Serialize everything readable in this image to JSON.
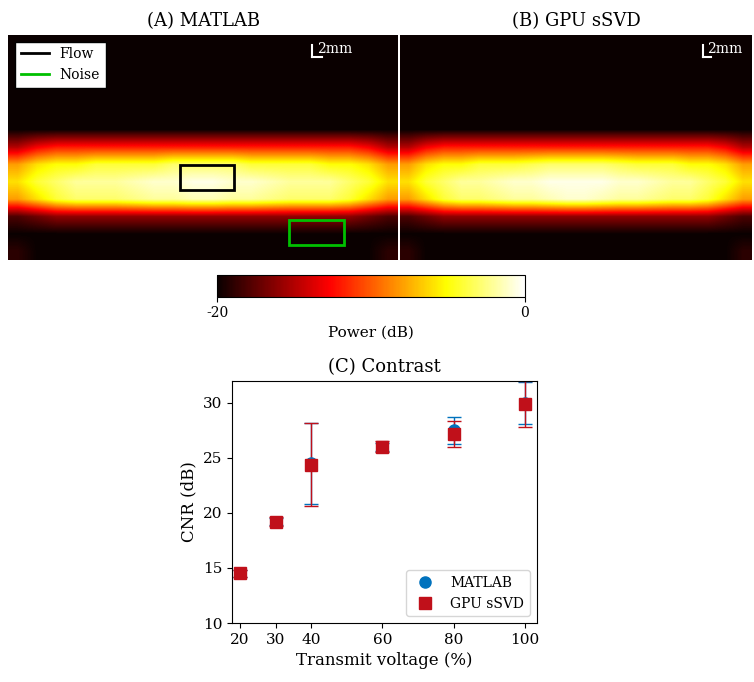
{
  "chart_data": [
    {
      "type": "image",
      "title": "(A) MATLAB",
      "tick_labels": false,
      "legend": "upper left",
      "series": [
        {
          "name": "Flow",
          "color": "#000000"
        },
        {
          "name": "Noise",
          "color": "#00c000"
        }
      ],
      "annotations": [
        "2mm"
      ],
      "cells": [
        [
          -20,
          -20,
          -20,
          -20,
          -20,
          -20,
          -20,
          -20,
          -20,
          -20,
          -20,
          -20,
          -20,
          -20,
          -20,
          -20,
          -20,
          -20,
          -20,
          -20
        ],
        [
          -20,
          -20,
          -20,
          -20,
          -20,
          -20,
          -20,
          -20,
          -20,
          -20,
          -20,
          -20,
          -20,
          -20,
          -20,
          -20,
          -20,
          -20,
          -20,
          -20
        ],
        [
          -20,
          -20,
          -20,
          -20,
          -20,
          -20,
          -20,
          -20,
          -20,
          -20,
          -20,
          -20,
          -20,
          -20,
          -20,
          -20,
          -20,
          -20,
          -20,
          -20
        ],
        [
          -20,
          -20,
          -20,
          -20,
          -20,
          -20,
          -20,
          -20,
          -20,
          -20,
          -20,
          -20,
          -20,
          -20,
          -20,
          -20,
          -20,
          -20,
          -20,
          -20
        ],
        [
          -20,
          -20,
          -20,
          -20,
          -20,
          -20,
          -20,
          -20,
          -20,
          -20,
          -20,
          -20,
          -20,
          -20,
          -20,
          -20,
          -20,
          -20,
          -20,
          -20
        ],
        [
          -20,
          -20,
          -20,
          -20,
          -20,
          -20,
          -20,
          -20,
          -20,
          -20,
          -20,
          -20,
          -20,
          -20,
          -20,
          -20,
          -20,
          -20,
          -20,
          -20
        ],
        [
          -15,
          -13,
          -12,
          -12,
          -12,
          -12,
          -12,
          -12,
          -12,
          -12,
          -12,
          -12,
          -12,
          -12,
          -12,
          -12,
          -12,
          -12,
          -13,
          -15
        ],
        [
          -8,
          -6,
          -5,
          -5,
          -4,
          -4,
          -4,
          -4,
          -3,
          -3,
          -3,
          -3,
          -4,
          -4,
          -4,
          -4,
          -5,
          -5,
          -6,
          -8
        ],
        [
          -6,
          -4,
          -3,
          -2,
          -2,
          -2,
          -1.5,
          -1,
          -1,
          -0.5,
          -0.5,
          -1,
          -1,
          -1.5,
          -2,
          -2,
          -2,
          -3,
          -4,
          -6
        ],
        [
          -8,
          -6,
          -4,
          -3,
          -3,
          -3,
          -2.5,
          -2,
          -2,
          -1.5,
          -1.5,
          -2,
          -2,
          -2.5,
          -3,
          -3,
          -3,
          -4,
          -6,
          -8
        ],
        [
          -18,
          -17,
          -16,
          -16,
          -16,
          -16,
          -16,
          -16,
          -16,
          -16,
          -16,
          -16,
          -16,
          -16,
          -16,
          -16,
          -16,
          -16,
          -17,
          -18
        ],
        [
          -20,
          -20,
          -20,
          -20,
          -20,
          -20,
          -20,
          -20,
          -20,
          -20,
          -20,
          -20,
          -20,
          -20,
          -20,
          -20,
          -20,
          -20,
          -20,
          -20
        ],
        [
          -19,
          -20,
          -20,
          -20,
          -20,
          -20,
          -20,
          -20,
          -20,
          -20,
          -20,
          -20,
          -20,
          -20,
          -20,
          -20,
          -20,
          -20,
          -20,
          -19
        ]
      ]
    },
    {
      "type": "image",
      "title": "(B) GPU sSVD",
      "tick_labels": false,
      "annotations": [
        "2mm"
      ],
      "cells": [
        [
          -20,
          -20,
          -20,
          -20,
          -20,
          -20,
          -20,
          -20,
          -20,
          -20,
          -20,
          -20,
          -20,
          -20,
          -20,
          -20,
          -20,
          -20,
          -20,
          -20
        ],
        [
          -20,
          -20,
          -20,
          -20,
          -20,
          -20,
          -20,
          -20,
          -20,
          -20,
          -20,
          -20,
          -20,
          -20,
          -20,
          -20,
          -20,
          -20,
          -20,
          -20
        ],
        [
          -20,
          -20,
          -20,
          -20,
          -20,
          -20,
          -20,
          -20,
          -20,
          -20,
          -20,
          -20,
          -20,
          -20,
          -20,
          -20,
          -20,
          -20,
          -20,
          -20
        ],
        [
          -20,
          -20,
          -20,
          -20,
          -20,
          -20,
          -20,
          -20,
          -20,
          -20,
          -20,
          -20,
          -20,
          -20,
          -20,
          -20,
          -20,
          -20,
          -20,
          -20
        ],
        [
          -20,
          -20,
          -20,
          -20,
          -20,
          -20,
          -20,
          -20,
          -20,
          -20,
          -20,
          -20,
          -20,
          -20,
          -20,
          -20,
          -20,
          -20,
          -20,
          -20
        ],
        [
          -20,
          -20,
          -20,
          -20,
          -20,
          -20,
          -20,
          -20,
          -20,
          -20,
          -20,
          -20,
          -20,
          -20,
          -20,
          -20,
          -20,
          -20,
          -20,
          -20
        ],
        [
          -15,
          -13,
          -12,
          -12,
          -12,
          -12,
          -12,
          -12,
          -12,
          -12,
          -12,
          -12,
          -12,
          -12,
          -12,
          -12,
          -12,
          -12,
          -13,
          -15
        ],
        [
          -8,
          -6,
          -5,
          -5,
          -4,
          -4,
          -4,
          -3.5,
          -3,
          -3,
          -3,
          -3,
          -3.5,
          -4,
          -4,
          -4,
          -5,
          -5,
          -6,
          -8
        ],
        [
          -6,
          -4,
          -3,
          -2,
          -2,
          -1.5,
          -1,
          -1,
          -0.5,
          -0.5,
          -0.5,
          -0.5,
          -1,
          -1,
          -1.5,
          -2,
          -2,
          -3,
          -4,
          -6
        ],
        [
          -8,
          -6,
          -4,
          -3,
          -3,
          -2.5,
          -2,
          -2,
          -1.5,
          -1,
          -1,
          -1.5,
          -2,
          -2,
          -2.5,
          -3,
          -3,
          -4,
          -6,
          -8
        ],
        [
          -18,
          -17,
          -16,
          -16,
          -16,
          -16,
          -16,
          -16,
          -16,
          -16,
          -16,
          -16,
          -16,
          -16,
          -16,
          -16,
          -16,
          -16,
          -17,
          -18
        ],
        [
          -20,
          -20,
          -20,
          -20,
          -20,
          -20,
          -20,
          -20,
          -20,
          -20,
          -20,
          -20,
          -20,
          -20,
          -20,
          -20,
          -20,
          -20,
          -20,
          -20
        ],
        [
          -19,
          -20,
          -20,
          -20,
          -20,
          -20,
          -20,
          -20,
          -20,
          -20,
          -20,
          -20,
          -20,
          -20,
          -20,
          -20,
          -20,
          -20,
          -20,
          -19
        ]
      ]
    },
    {
      "type": "colorbar",
      "colorbar_label": "Power (dB)",
      "colorbar_range": [
        -20,
        0
      ],
      "colorbar_ticks": [
        -20,
        0
      ]
    },
    {
      "type": "scatter",
      "title": "(C) Contrast",
      "x_label": "Transmit voltage (%)",
      "y_label": "CNR (dB)",
      "x": [
        20,
        30,
        40,
        60,
        80,
        100
      ],
      "xlim": [
        17.8,
        103.4
      ],
      "xticks": [
        20,
        30,
        40,
        60,
        80,
        100
      ],
      "ylim": [
        10,
        32
      ],
      "yticks": [
        10,
        15,
        20,
        25,
        30
      ],
      "grid": false,
      "legend": "lower right",
      "series": [
        {
          "name": "MATLAB",
          "color": "#0072bd",
          "marker": "circle",
          "values": [
            14.5,
            19.2,
            24.5,
            26.0,
            27.5,
            30.0
          ],
          "error": [
            0.3,
            0.3,
            3.7,
            0.4,
            1.2,
            1.9
          ]
        },
        {
          "name": "GPU sSVD",
          "color": "#c0101a",
          "marker": "square",
          "values": [
            14.5,
            19.2,
            24.4,
            26.0,
            27.2,
            29.9
          ],
          "error": [
            0.3,
            0.4,
            3.8,
            0.5,
            1.2,
            2.1
          ]
        }
      ]
    }
  ]
}
